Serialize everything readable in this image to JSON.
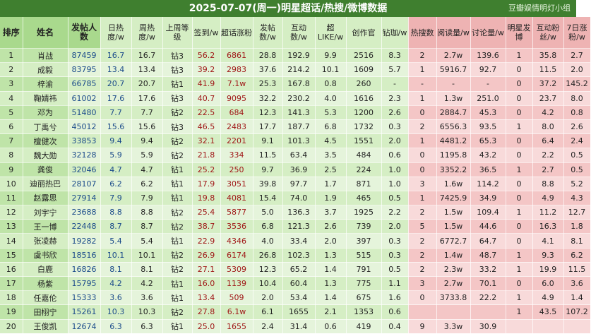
{
  "title": "2025-07-07(周一)明星超话/热搜/微博数据",
  "watermark": "豆瓣娱情明灯小组",
  "chart_data": {
    "type": "table",
    "columns": [
      "排序",
      "姓名",
      "发帖人数",
      "日热度/w",
      "周热度/w",
      "上周等级",
      "签到/w",
      "超话涨粉",
      "发帖数/w",
      "互动数/w",
      "超LIKE/w",
      "创作官",
      "钻珈/w",
      "热搜数",
      "阅读量/w",
      "讨论量/w",
      "明星发博",
      "互动粉丝/w",
      "7日涨粉/w"
    ],
    "rows": [
      [
        "1",
        "肖战",
        "87459",
        "16.7",
        "16.7",
        "钻3",
        "56.2",
        "6861",
        "28.8",
        "192.9",
        "9.9",
        "2516",
        "8.3",
        "2",
        "2.7w",
        "139.6",
        "1",
        "35.8",
        "2.7"
      ],
      [
        "2",
        "成毅",
        "83795",
        "13.4",
        "13.4",
        "钻3",
        "39.2",
        "2983",
        "37.6",
        "214.2",
        "10.1",
        "1609",
        "5.7",
        "1",
        "5916.7",
        "92.7",
        "0",
        "11.5",
        "2.0"
      ],
      [
        "3",
        "梓渝",
        "66785",
        "20.7",
        "20.7",
        "钻1",
        "41.9",
        "7.1w",
        "25.3",
        "167.8",
        "0.8",
        "260",
        "-",
        "-",
        "-",
        "-",
        "0",
        "37.2",
        "145.2"
      ],
      [
        "4",
        "鞠婧祎",
        "61002",
        "17.6",
        "17.6",
        "钻3",
        "40.7",
        "9095",
        "32.2",
        "230.2",
        "4.0",
        "1616",
        "2.3",
        "1",
        "1.3w",
        "251.0",
        "0",
        "23.7",
        "8.0"
      ],
      [
        "5",
        "邓为",
        "51480",
        "7.7",
        "7.7",
        "钻2",
        "22.5",
        "684",
        "12.3",
        "141.3",
        "5.3",
        "1200",
        "2.6",
        "0",
        "2884.7",
        "45.3",
        "0",
        "4.2",
        "0.8"
      ],
      [
        "6",
        "丁禹兮",
        "45012",
        "15.6",
        "15.6",
        "钻3",
        "46.5",
        "2483",
        "17.7",
        "187.7",
        "6.8",
        "1732",
        "0.3",
        "2",
        "6556.3",
        "93.5",
        "1",
        "8.0",
        "2.6"
      ],
      [
        "7",
        "檀健次",
        "33853",
        "9.4",
        "9.4",
        "钻2",
        "32.1",
        "2201",
        "9.1",
        "101.3",
        "4.5",
        "1551",
        "2.0",
        "1",
        "4481.2",
        "65.3",
        "0",
        "6.4",
        "2.4"
      ],
      [
        "8",
        "魏大勋",
        "32128",
        "5.9",
        "5.9",
        "钻2",
        "21.8",
        "334",
        "11.5",
        "63.4",
        "3.5",
        "484",
        "0.6",
        "0",
        "1195.8",
        "43.2",
        "0",
        "2.2",
        "0.5"
      ],
      [
        "9",
        "龚俊",
        "32046",
        "4.7",
        "4.7",
        "钻1",
        "25.2",
        "250",
        "9.7",
        "36.9",
        "2.5",
        "224",
        "1.0",
        "0",
        "3352.2",
        "36.5",
        "1",
        "2.7",
        "0.5"
      ],
      [
        "10",
        "迪丽热巴",
        "28107",
        "6.2",
        "6.2",
        "钻1",
        "17.9",
        "3051",
        "39.8",
        "97.7",
        "1.7",
        "871",
        "1.0",
        "3",
        "1.6w",
        "114.2",
        "0",
        "8.8",
        "5.2"
      ],
      [
        "11",
        "赵露思",
        "27914",
        "7.9",
        "7.9",
        "钻1",
        "19.8",
        "4081",
        "15.4",
        "74.0",
        "1.9",
        "465",
        "0.5",
        "1",
        "7425.9",
        "34.9",
        "0",
        "4.9",
        "4.3"
      ],
      [
        "12",
        "刘宇宁",
        "23688",
        "8.8",
        "8.8",
        "钻2",
        "25.4",
        "5877",
        "5.0",
        "136.3",
        "3.7",
        "1925",
        "2.2",
        "2",
        "1.5w",
        "109.4",
        "1",
        "11.2",
        "12.7"
      ],
      [
        "13",
        "王一博",
        "22448",
        "8.7",
        "8.7",
        "钻2",
        "38.7",
        "3536",
        "6.8",
        "121.3",
        "2.6",
        "739",
        "2.0",
        "5",
        "1.5w",
        "44.6",
        "0",
        "16.3",
        "1.8"
      ],
      [
        "14",
        "张凌赫",
        "19282",
        "5.4",
        "5.4",
        "钻1",
        "22.9",
        "4346",
        "4.0",
        "33.4",
        "2.0",
        "397",
        "0.3",
        "2",
        "6772.7",
        "64.7",
        "0",
        "4.1",
        "8.1"
      ],
      [
        "15",
        "虞书欣",
        "18516",
        "10.1",
        "10.1",
        "钻2",
        "26.9",
        "6174",
        "26.8",
        "102.3",
        "1.3",
        "515",
        "0.3",
        "2",
        "1.4w",
        "48.7",
        "1",
        "9.3",
        "6.2"
      ],
      [
        "16",
        "白鹿",
        "16826",
        "8.1",
        "8.1",
        "钻2",
        "27.1",
        "5309",
        "12.3",
        "65.2",
        "1.4",
        "791",
        "0.5",
        "2",
        "2.3w",
        "33.2",
        "1",
        "19.9",
        "11.5"
      ],
      [
        "17",
        "杨紫",
        "15795",
        "4.2",
        "4.2",
        "钻1",
        "16.0",
        "1139",
        "10.4",
        "60.4",
        "1.3",
        "775",
        "1.1",
        "3",
        "2.7w",
        "70.1",
        "0",
        "6.0",
        "3.6"
      ],
      [
        "18",
        "任嘉伦",
        "15333",
        "3.6",
        "3.6",
        "钻1",
        "13.4",
        "509",
        "2.0",
        "53.4",
        "1.4",
        "675",
        "1.6",
        "0",
        "3733.8",
        "22.2",
        "1",
        "4.9",
        "1.4"
      ],
      [
        "19",
        "田栩宁",
        "15261",
        "10.3",
        "10.3",
        "钻2",
        "27.8",
        "6.1w",
        "6.1",
        "1655",
        "2.1",
        "1353",
        "0.6",
        "",
        "",
        "",
        "1",
        "43.5",
        "107.2"
      ],
      [
        "20",
        "王俊凯",
        "12674",
        "6.3",
        "6.3",
        "钻1",
        "25.0",
        "1655",
        "2.4",
        "31.4",
        "0.6",
        "419",
        "0.4",
        "9",
        "3.3w",
        "30.9",
        "",
        "",
        ""
      ]
    ]
  }
}
